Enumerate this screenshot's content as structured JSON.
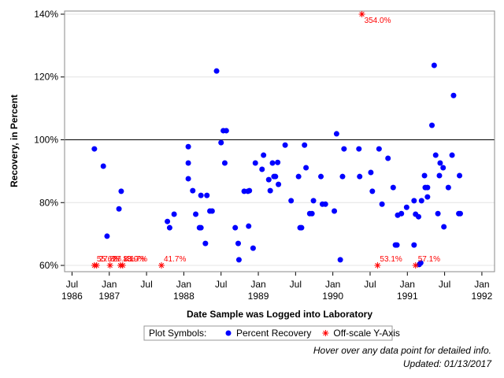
{
  "chart_data": {
    "type": "scatter",
    "y_label": "Recovery, in Percent",
    "x_label": "Date Sample was Logged into Laboratory",
    "xlim": [
      1986.4,
      1992.17
    ],
    "ylim": [
      58,
      141
    ],
    "xticks": [
      {
        "value": 1986.5,
        "label": "Jul 1986"
      },
      {
        "value": 1987,
        "label": "Jan 1987"
      },
      {
        "value": 1987.5,
        "label": "Jul"
      },
      {
        "value": 1988,
        "label": "Jan 1988"
      },
      {
        "value": 1988.5,
        "label": "Jul"
      },
      {
        "value": 1989,
        "label": "Jan 1989"
      },
      {
        "value": 1989.5,
        "label": "Jul"
      },
      {
        "value": 1990,
        "label": "Jan 1990"
      },
      {
        "value": 1990.5,
        "label": "Jul"
      },
      {
        "value": 1991,
        "label": "Jan 1991"
      },
      {
        "value": 1991.5,
        "label": "Jul"
      },
      {
        "value": 1992,
        "label": "Jan 1992"
      }
    ],
    "yticks": [
      {
        "value": 60,
        "label": "60%"
      },
      {
        "value": 80,
        "label": "80%"
      },
      {
        "value": 100,
        "label": "100%"
      },
      {
        "value": 120,
        "label": "120%"
      },
      {
        "value": 140,
        "label": "140%"
      }
    ],
    "grid": true,
    "reference_line": 100,
    "legend_title": "Plot Symbols:",
    "series": [
      {
        "name": "Percent Recovery",
        "color": "#0000ff",
        "marker": "circle",
        "x": [
          1986.8,
          1986.92,
          1986.97,
          1987.13,
          1987.16,
          1987.78,
          1987.81,
          1987.87,
          1988.06,
          1988.06,
          1988.06,
          1988.12,
          1988.16,
          1988.21,
          1988.23,
          1988.23,
          1988.29,
          1988.31,
          1988.35,
          1988.38,
          1988.44,
          1988.5,
          1988.53,
          1988.57,
          1988.55,
          1988.69,
          1988.73,
          1988.74,
          1988.81,
          1988.86,
          1988.87,
          1988.88,
          1988.93,
          1988.96,
          1989.05,
          1989.07,
          1989.14,
          1989.16,
          1989.19,
          1989.21,
          1989.23,
          1989.26,
          1989.27,
          1989.36,
          1989.44,
          1989.54,
          1989.56,
          1989.58,
          1989.62,
          1989.64,
          1989.69,
          1989.72,
          1989.74,
          1989.84,
          1989.86,
          1989.9,
          1990.02,
          1990.05,
          1990.1,
          1990.13,
          1990.15,
          1990.35,
          1990.36,
          1990.51,
          1990.53,
          1990.62,
          1990.66,
          1990.74,
          1990.81,
          1990.84,
          1990.86,
          1990.87,
          1990.92,
          1990.99,
          1991.09,
          1991.09,
          1991.11,
          1991.15,
          1991.16,
          1991.18,
          1991.19,
          1991.23,
          1991.24,
          1991.27,
          1991.27,
          1991.33,
          1991.36,
          1991.38,
          1991.41,
          1991.43,
          1991.44,
          1991.48,
          1991.49,
          1991.55,
          1991.6,
          1991.62,
          1991.69,
          1991.7,
          1991.71
        ],
        "values": [
          97.1,
          91.6,
          69.3,
          78.0,
          83.6,
          74.0,
          72.0,
          76.3,
          97.8,
          92.6,
          87.6,
          83.8,
          76.3,
          72.0,
          72.0,
          82.3,
          67.0,
          82.3,
          77.3,
          77.3,
          121.9,
          99.1,
          102.9,
          102.9,
          92.6,
          72.0,
          67.0,
          61.8,
          83.6,
          83.6,
          72.5,
          83.8,
          65.5,
          92.6,
          90.6,
          95.1,
          87.3,
          83.8,
          92.6,
          88.3,
          88.3,
          92.8,
          85.8,
          98.3,
          80.6,
          88.3,
          72.0,
          72.0,
          98.3,
          91.1,
          76.5,
          76.5,
          80.6,
          88.3,
          79.5,
          79.5,
          77.3,
          101.9,
          61.8,
          88.3,
          97.1,
          97.1,
          88.3,
          89.6,
          83.6,
          97.1,
          79.5,
          94.1,
          84.8,
          66.5,
          66.5,
          76.0,
          76.5,
          78.5,
          80.6,
          66.5,
          76.3,
          75.5,
          60.3,
          60.8,
          80.6,
          88.6,
          84.8,
          84.8,
          81.8,
          104.6,
          123.7,
          95.1,
          76.5,
          88.6,
          92.6,
          91.1,
          72.3,
          84.8,
          95.1,
          114.1,
          76.5,
          88.6,
          76.5
        ]
      },
      {
        "name": "Off-scale Y-Axis",
        "color": "#ff0000",
        "marker": "asterisk",
        "x": [
          1986.8,
          1986.83,
          1987.01,
          1987.18,
          1987.15,
          1987.7,
          1990.6,
          1991.11,
          1990.39
        ],
        "values": [
          55.6,
          27.8,
          27.8,
          41.7,
          13.9,
          41.7,
          53.1,
          57.1,
          354.0
        ],
        "value_labels": [
          "55.6%",
          "27.8%",
          "27.8%",
          "41.7%",
          "13.9%",
          "41.7%",
          "53.1%",
          "57.1%",
          "354.0%"
        ]
      }
    ],
    "footnotes": [
      "Hover over any data point for detailed info.",
      "Updated: 01/13/2017"
    ]
  }
}
